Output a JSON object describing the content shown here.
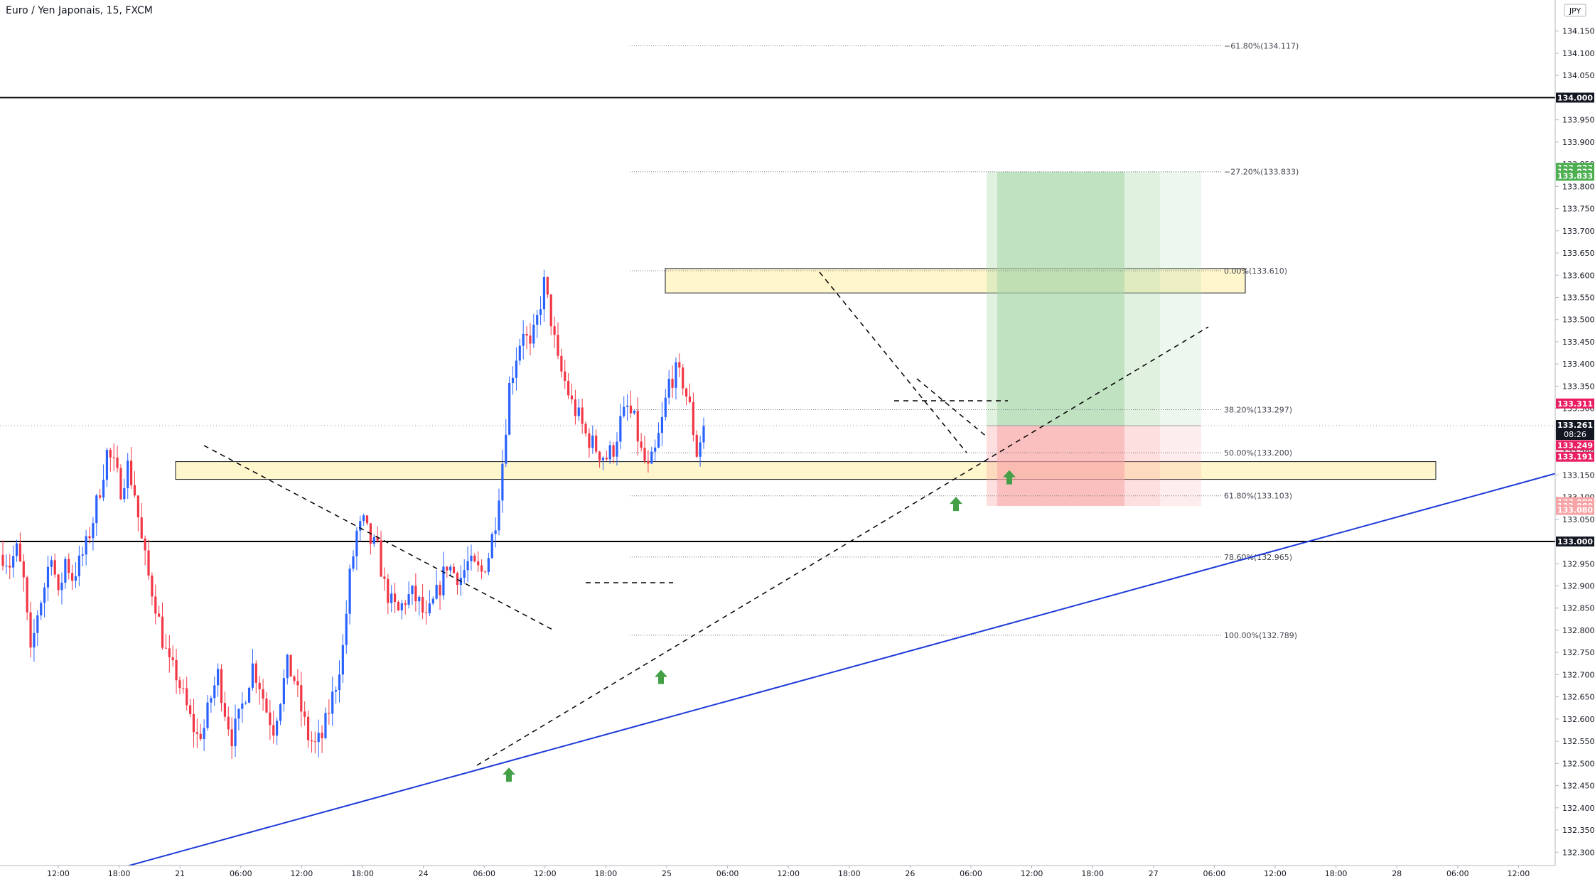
{
  "header": {
    "title": "Euro / Yen Japonais, 15, FXCM",
    "currency_badge": "JPY"
  },
  "colors": {
    "bull_candle": "#2962ff",
    "bear_candle": "#f23645",
    "trendline": "#1e3ad8",
    "zone_fill": "#fff6cc",
    "profit_fill": "#a5d6a7",
    "loss_fill": "#f8a4a4",
    "target_tag": "#4caf50",
    "stop_tag": "#f7a4a7",
    "price_tag": "#e91e63",
    "current_tag": "#131722",
    "signal_arrow": "#43a047"
  },
  "price_axis": {
    "ticks": [
      "134.150",
      "134.100",
      "134.050",
      "134.000",
      "133.950",
      "133.900",
      "133.850",
      "133.800",
      "133.750",
      "133.700",
      "133.650",
      "133.600",
      "133.550",
      "133.500",
      "133.450",
      "133.400",
      "133.350",
      "133.300",
      "133.250",
      "133.200",
      "133.150",
      "133.100",
      "133.050",
      "133.000",
      "132.950",
      "132.900",
      "132.850",
      "132.800",
      "132.750",
      "132.700",
      "132.650",
      "132.600",
      "132.550",
      "132.500",
      "132.450",
      "132.400",
      "132.350",
      "132.300"
    ],
    "tags": [
      {
        "label": "134.000",
        "price": 134.0,
        "style": "level"
      },
      {
        "label": "133.833",
        "price": 133.842,
        "style": "target"
      },
      {
        "label": "133.833",
        "price": 133.833,
        "style": "target"
      },
      {
        "label": "133.833",
        "price": 133.824,
        "style": "target"
      },
      {
        "label": "133.311",
        "price": 133.311,
        "style": "price"
      },
      {
        "label": "133.261",
        "price": 133.261,
        "style": "current",
        "timer": "08:26"
      },
      {
        "label": "133.249",
        "price": 133.217,
        "style": "price"
      },
      {
        "label": "133.191",
        "price": 133.191,
        "style": "price"
      },
      {
        "label": "133.080",
        "price": 133.089,
        "style": "stop"
      },
      {
        "label": "133.080",
        "price": 133.08,
        "style": "stop"
      },
      {
        "label": "133.080",
        "price": 133.071,
        "style": "stop"
      },
      {
        "label": "133.000",
        "price": 133.0,
        "style": "level"
      }
    ]
  },
  "time_axis": {
    "labels": [
      "12:00",
      "18:00",
      "21",
      "06:00",
      "12:00",
      "18:00",
      "24",
      "06:00",
      "12:00",
      "18:00",
      "25",
      "06:00",
      "12:00",
      "18:00",
      "26",
      "06:00",
      "12:00",
      "18:00",
      "27",
      "06:00",
      "12:00",
      "18:00",
      "28",
      "06:00",
      "12:00"
    ]
  },
  "fibonacci": {
    "levels": [
      {
        "label": "−61.80%(134.117)",
        "price": 134.117
      },
      {
        "label": "−27.20%(133.833)",
        "price": 133.833
      },
      {
        "label": "0.00%(133.610)",
        "price": 133.61
      },
      {
        "label": "38.20%(133.297)",
        "price": 133.297
      },
      {
        "label": "50.00%(133.200)",
        "price": 133.2
      },
      {
        "label": "61.80%(133.103)",
        "price": 133.103
      },
      {
        "label": "78.60%(132.965)",
        "price": 132.965
      },
      {
        "label": "100.00%(132.789)",
        "price": 132.789
      }
    ]
  },
  "chart_data": {
    "type": "candlestick",
    "symbol": "Euro / Yen Japonais",
    "timeframe": "15",
    "source": "FXCM",
    "ylim": [
      132.27,
      134.22
    ],
    "horizontal_levels": [
      134.0,
      133.0
    ],
    "last_price": 133.261,
    "supply_demand_zones": [
      {
        "top": 133.615,
        "bottom": 133.56
      },
      {
        "top": 133.18,
        "bottom": 133.14
      }
    ],
    "trendline": {
      "from_price": 132.19,
      "to_price": 133.153
    },
    "position": {
      "type": "long",
      "entry": 133.261,
      "target": 133.833,
      "stop": 133.08
    },
    "signal_arrows_at_price": [
      132.51,
      132.73,
      133.12,
      133.18
    ],
    "price_path": [
      [
        0,
        132.97
      ],
      [
        2,
        132.95
      ],
      [
        4,
        132.98
      ],
      [
        6,
        132.91
      ],
      [
        8,
        132.74
      ],
      [
        10,
        132.84
      ],
      [
        12,
        132.9
      ],
      [
        14,
        132.98
      ],
      [
        16,
        132.87
      ],
      [
        18,
        132.96
      ],
      [
        20,
        132.92
      ],
      [
        22,
        132.95
      ],
      [
        24,
        132.99
      ],
      [
        26,
        133.05
      ],
      [
        28,
        133.12
      ],
      [
        30,
        133.2
      ],
      [
        32,
        133.17
      ],
      [
        34,
        133.12
      ],
      [
        36,
        133.17
      ],
      [
        38,
        133.11
      ],
      [
        40,
        133.0
      ],
      [
        42,
        132.92
      ],
      [
        44,
        132.86
      ],
      [
        46,
        132.78
      ],
      [
        48,
        132.72
      ],
      [
        50,
        132.7
      ],
      [
        52,
        132.65
      ],
      [
        54,
        132.6
      ],
      [
        56,
        132.56
      ],
      [
        58,
        132.58
      ],
      [
        60,
        132.65
      ],
      [
        62,
        132.7
      ],
      [
        64,
        132.62
      ],
      [
        66,
        132.56
      ],
      [
        68,
        132.6
      ],
      [
        70,
        132.66
      ],
      [
        72,
        132.72
      ],
      [
        74,
        132.68
      ],
      [
        76,
        132.62
      ],
      [
        78,
        132.58
      ],
      [
        80,
        132.65
      ],
      [
        82,
        132.72
      ],
      [
        84,
        132.69
      ],
      [
        86,
        132.62
      ],
      [
        88,
        132.56
      ],
      [
        90,
        132.54
      ],
      [
        92,
        132.56
      ],
      [
        94,
        132.62
      ],
      [
        96,
        132.68
      ],
      [
        98,
        132.76
      ],
      [
        100,
        132.92
      ],
      [
        102,
        133.02
      ],
      [
        104,
        133.04
      ],
      [
        106,
        133.0
      ],
      [
        108,
        132.98
      ],
      [
        110,
        132.9
      ],
      [
        112,
        132.86
      ],
      [
        114,
        132.84
      ],
      [
        116,
        132.87
      ],
      [
        118,
        132.88
      ],
      [
        120,
        132.86
      ],
      [
        122,
        132.82
      ],
      [
        124,
        132.86
      ],
      [
        126,
        132.9
      ],
      [
        128,
        132.95
      ],
      [
        130,
        132.93
      ],
      [
        132,
        132.92
      ],
      [
        134,
        132.95
      ],
      [
        136,
        132.94
      ],
      [
        138,
        132.93
      ],
      [
        140,
        132.97
      ],
      [
        142,
        133.05
      ],
      [
        144,
        133.18
      ],
      [
        146,
        133.35
      ],
      [
        148,
        133.42
      ],
      [
        150,
        133.48
      ],
      [
        152,
        133.43
      ],
      [
        154,
        133.5
      ],
      [
        156,
        133.58
      ],
      [
        158,
        133.5
      ],
      [
        160,
        133.4
      ],
      [
        162,
        133.36
      ],
      [
        164,
        133.31
      ],
      [
        166,
        133.28
      ],
      [
        168,
        133.24
      ],
      [
        170,
        133.22
      ],
      [
        172,
        133.2
      ],
      [
        174,
        133.19
      ],
      [
        176,
        133.21
      ],
      [
        178,
        133.27
      ],
      [
        180,
        133.3
      ],
      [
        182,
        133.27
      ],
      [
        184,
        133.2
      ],
      [
        186,
        133.16
      ],
      [
        188,
        133.2
      ],
      [
        190,
        133.27
      ],
      [
        192,
        133.36
      ],
      [
        194,
        133.38
      ],
      [
        196,
        133.36
      ],
      [
        198,
        133.3
      ],
      [
        200,
        133.2
      ],
      [
        202,
        133.26
      ]
    ]
  }
}
